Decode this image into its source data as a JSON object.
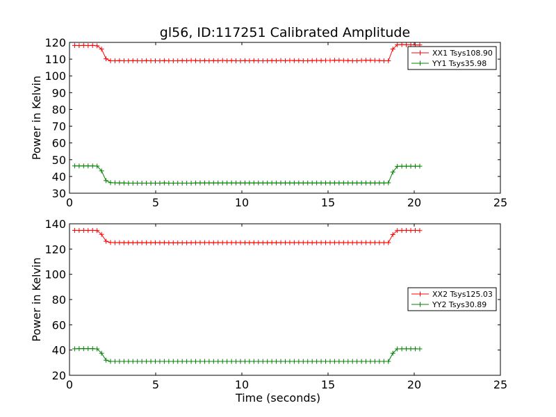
{
  "chart_data": [
    {
      "type": "line",
      "title": "gl56, ID:117251 Calibrated Amplitude",
      "xlabel": "",
      "ylabel": "Power in Kelvin",
      "xlim": [
        0,
        25
      ],
      "ylim": [
        30,
        120
      ],
      "xticks": [
        0,
        5,
        10,
        15,
        20,
        25
      ],
      "yticks": [
        30,
        40,
        50,
        60,
        70,
        80,
        90,
        100,
        110,
        120
      ],
      "legend_position": "top-right",
      "series": [
        {
          "name": "XX1 Tsys108.90",
          "color": "#ff0000",
          "marker": "plus",
          "x": [
            0.3,
            0.56,
            0.82,
            1.08,
            1.34,
            1.6,
            1.86,
            2.12,
            2.38,
            2.64,
            2.9,
            3.16,
            3.42,
            3.68,
            3.94,
            4.2,
            4.46,
            4.72,
            4.98,
            5.24,
            5.5,
            5.76,
            6.02,
            6.28,
            6.54,
            6.8,
            7.06,
            7.32,
            7.58,
            7.84,
            8.1,
            8.36,
            8.62,
            8.88,
            9.14,
            9.4,
            9.66,
            9.92,
            10.18,
            10.44,
            10.7,
            10.96,
            11.22,
            11.48,
            11.74,
            12.0,
            12.26,
            12.52,
            12.78,
            13.04,
            13.3,
            13.56,
            13.82,
            14.08,
            14.34,
            14.6,
            14.86,
            15.12,
            15.38,
            15.64,
            15.9,
            16.16,
            16.42,
            16.68,
            16.94,
            17.2,
            17.46,
            17.72,
            17.98,
            18.24,
            18.5,
            18.76,
            19.02,
            19.28,
            19.54,
            19.8,
            20.06,
            20.32
          ],
          "values": [
            118.2,
            118.1,
            118.2,
            118.1,
            118.2,
            118.0,
            116.0,
            110.2,
            109.0,
            109.0,
            109.1,
            109.0,
            109.0,
            109.1,
            109.0,
            109.0,
            109.1,
            109.0,
            109.0,
            109.0,
            109.1,
            109.0,
            109.0,
            109.0,
            109.1,
            109.0,
            109.2,
            109.1,
            109.0,
            109.1,
            109.0,
            109.1,
            109.0,
            109.2,
            109.0,
            109.1,
            109.0,
            109.0,
            109.1,
            109.0,
            109.1,
            109.0,
            109.0,
            109.0,
            109.1,
            109.0,
            109.2,
            109.0,
            109.2,
            109.1,
            109.1,
            109.0,
            109.0,
            109.1,
            109.2,
            109.1,
            109.2,
            109.2,
            109.3,
            109.3,
            109.2,
            109.1,
            109.0,
            109.0,
            109.2,
            109.3,
            109.3,
            109.2,
            109.1,
            109.0,
            109.0,
            116.0,
            118.6,
            118.7,
            118.6,
            118.6,
            118.5,
            118.5
          ]
        },
        {
          "name": "YY1 Tsys35.98",
          "color": "#008000",
          "marker": "plus",
          "x": [
            0.3,
            0.56,
            0.82,
            1.08,
            1.34,
            1.6,
            1.86,
            2.12,
            2.38,
            2.64,
            2.9,
            3.16,
            3.42,
            3.68,
            3.94,
            4.2,
            4.46,
            4.72,
            4.98,
            5.24,
            5.5,
            5.76,
            6.02,
            6.28,
            6.54,
            6.8,
            7.06,
            7.32,
            7.58,
            7.84,
            8.1,
            8.36,
            8.62,
            8.88,
            9.14,
            9.4,
            9.66,
            9.92,
            10.18,
            10.44,
            10.7,
            10.96,
            11.22,
            11.48,
            11.74,
            12.0,
            12.26,
            12.52,
            12.78,
            13.04,
            13.3,
            13.56,
            13.82,
            14.08,
            14.34,
            14.6,
            14.86,
            15.12,
            15.38,
            15.64,
            15.9,
            16.16,
            16.42,
            16.68,
            16.94,
            17.2,
            17.46,
            17.72,
            17.98,
            18.24,
            18.5,
            18.76,
            19.02,
            19.28,
            19.54,
            19.8,
            20.06,
            20.32
          ],
          "values": [
            46.3,
            46.3,
            46.3,
            46.3,
            46.3,
            46.2,
            43.3,
            37.5,
            36.3,
            36.2,
            36.1,
            36.1,
            36.0,
            36.0,
            36.0,
            36.0,
            36.0,
            36.0,
            36.0,
            36.0,
            36.1,
            36.0,
            36.0,
            36.0,
            36.0,
            36.0,
            36.0,
            36.1,
            36.1,
            36.1,
            36.1,
            36.1,
            36.1,
            36.1,
            36.1,
            36.1,
            36.1,
            36.1,
            36.1,
            36.1,
            36.1,
            36.1,
            36.1,
            36.1,
            36.1,
            36.1,
            36.1,
            36.1,
            36.1,
            36.1,
            36.1,
            36.1,
            36.1,
            36.1,
            36.1,
            36.1,
            36.1,
            36.1,
            36.1,
            36.1,
            36.1,
            36.1,
            36.1,
            36.1,
            36.1,
            36.1,
            36.1,
            36.1,
            36.1,
            36.1,
            36.2,
            42.6,
            46.0,
            46.1,
            46.1,
            46.1,
            46.1,
            46.1
          ]
        }
      ]
    },
    {
      "type": "line",
      "title": "",
      "xlabel": "Time (seconds)",
      "ylabel": "Power in Kelvin",
      "xlim": [
        0,
        25
      ],
      "ylim": [
        20,
        140
      ],
      "xticks": [
        0,
        5,
        10,
        15,
        20,
        25
      ],
      "yticks": [
        20,
        40,
        60,
        80,
        100,
        120,
        140
      ],
      "legend_position": "center-right",
      "series": [
        {
          "name": "XX2 Tsys125.03",
          "color": "#ff0000",
          "marker": "plus",
          "x": [
            0.3,
            0.56,
            0.82,
            1.08,
            1.34,
            1.6,
            1.86,
            2.12,
            2.38,
            2.64,
            2.9,
            3.16,
            3.42,
            3.68,
            3.94,
            4.2,
            4.46,
            4.72,
            4.98,
            5.24,
            5.5,
            5.76,
            6.02,
            6.28,
            6.54,
            6.8,
            7.06,
            7.32,
            7.58,
            7.84,
            8.1,
            8.36,
            8.62,
            8.88,
            9.14,
            9.4,
            9.66,
            9.92,
            10.18,
            10.44,
            10.7,
            10.96,
            11.22,
            11.48,
            11.74,
            12.0,
            12.26,
            12.52,
            12.78,
            13.04,
            13.3,
            13.56,
            13.82,
            14.08,
            14.34,
            14.6,
            14.86,
            15.12,
            15.38,
            15.64,
            15.9,
            16.16,
            16.42,
            16.68,
            16.94,
            17.2,
            17.46,
            17.72,
            17.98,
            18.24,
            18.5,
            18.76,
            19.02,
            19.28,
            19.54,
            19.8,
            20.06,
            20.32
          ],
          "values": [
            134.8,
            134.7,
            134.8,
            134.7,
            134.8,
            134.6,
            131.6,
            126.2,
            125.2,
            125.1,
            125.1,
            125.0,
            125.0,
            125.0,
            125.0,
            125.1,
            125.0,
            125.0,
            125.1,
            125.0,
            125.1,
            124.9,
            124.9,
            124.9,
            124.9,
            124.9,
            125.0,
            125.1,
            125.1,
            125.1,
            125.1,
            125.0,
            125.1,
            125.1,
            125.1,
            125.1,
            125.1,
            125.1,
            125.0,
            125.0,
            125.0,
            125.0,
            125.0,
            125.0,
            125.1,
            125.0,
            125.1,
            125.1,
            125.1,
            125.1,
            125.1,
            125.1,
            125.1,
            125.0,
            125.1,
            125.1,
            125.1,
            125.1,
            125.1,
            125.1,
            125.1,
            125.1,
            125.1,
            125.1,
            125.1,
            125.1,
            125.1,
            125.1,
            125.1,
            125.1,
            125.1,
            131.5,
            134.6,
            134.7,
            134.8,
            134.7,
            134.8,
            134.6
          ]
        },
        {
          "name": "YY2 Tsys30.89",
          "color": "#008000",
          "marker": "plus",
          "x": [
            0.3,
            0.56,
            0.82,
            1.08,
            1.34,
            1.6,
            1.86,
            2.12,
            2.38,
            2.64,
            2.9,
            3.16,
            3.42,
            3.68,
            3.94,
            4.2,
            4.46,
            4.72,
            4.98,
            5.24,
            5.5,
            5.76,
            6.02,
            6.28,
            6.54,
            6.8,
            7.06,
            7.32,
            7.58,
            7.84,
            8.1,
            8.36,
            8.62,
            8.88,
            9.14,
            9.4,
            9.66,
            9.92,
            10.18,
            10.44,
            10.7,
            10.96,
            11.22,
            11.48,
            11.74,
            12.0,
            12.26,
            12.52,
            12.78,
            13.04,
            13.3,
            13.56,
            13.82,
            14.08,
            14.34,
            14.6,
            14.86,
            15.12,
            15.38,
            15.64,
            15.9,
            16.16,
            16.42,
            16.68,
            16.94,
            17.2,
            17.46,
            17.72,
            17.98,
            18.24,
            18.5,
            18.76,
            19.02,
            19.28,
            19.54,
            19.8,
            20.06,
            20.32
          ],
          "values": [
            41.0,
            41.1,
            41.1,
            41.1,
            41.1,
            40.9,
            37.5,
            32.0,
            31.0,
            31.0,
            31.0,
            31.0,
            31.0,
            31.0,
            31.0,
            31.0,
            31.0,
            31.0,
            31.0,
            31.0,
            31.0,
            31.0,
            31.0,
            31.0,
            31.0,
            31.0,
            31.0,
            31.0,
            31.0,
            31.0,
            31.0,
            31.0,
            31.0,
            31.0,
            31.0,
            31.0,
            31.0,
            31.0,
            31.0,
            31.0,
            31.0,
            31.0,
            31.0,
            31.0,
            31.0,
            31.0,
            31.0,
            31.0,
            31.0,
            31.0,
            31.0,
            31.0,
            31.0,
            31.0,
            31.0,
            31.0,
            31.0,
            31.0,
            31.0,
            31.0,
            31.0,
            31.0,
            31.0,
            31.0,
            31.0,
            31.0,
            31.0,
            31.0,
            31.0,
            31.0,
            31.0,
            37.5,
            40.9,
            41.0,
            41.0,
            41.0,
            41.0,
            40.9
          ]
        }
      ]
    }
  ]
}
